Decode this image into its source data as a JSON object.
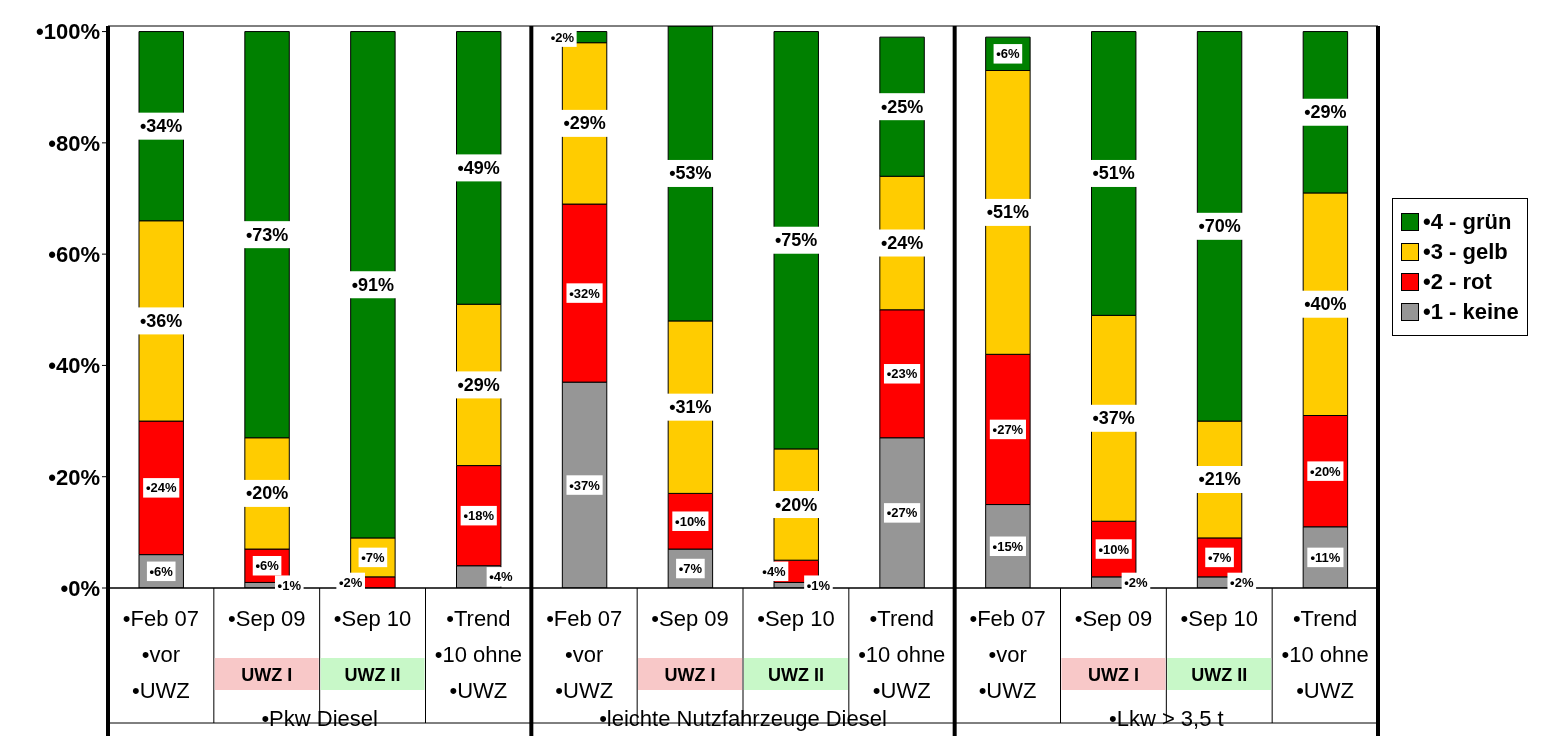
{
  "chart_data": {
    "type": "bar",
    "stacked": true,
    "categories": [
      "•Feb 07\n•vor\n•UWZ",
      "•Sep 09",
      "•Sep 10",
      "•Trend\n•10 ohne\n•UWZ",
      "•Feb 07\n•vor\n•UWZ",
      "•Sep 09",
      "•Sep 10",
      "•Trend\n•10 ohne\n•UWZ",
      "•Feb 07\n•vor\n•UWZ",
      "•Sep 09",
      "•Sep 10",
      "•Trend\n•10 ohne\n•UWZ"
    ],
    "series": [
      {
        "name": "•1 - keine",
        "color": "#969696",
        "values": [
          6,
          1,
          0,
          4,
          37,
          7,
          1,
          27,
          15,
          2,
          2,
          11
        ],
        "value_labels": [
          "•6%",
          "•1%",
          null,
          "•4%",
          "•37%",
          "•7%",
          "•1%",
          "•27%",
          "•15%",
          "•2%",
          "•2%",
          "•11%"
        ]
      },
      {
        "name": "•2 - rot",
        "color": "#ff0000",
        "values": [
          24,
          6,
          2,
          18,
          32,
          10,
          4,
          23,
          27,
          10,
          7,
          20
        ],
        "value_labels": [
          "•24%",
          "•6%",
          "•2%",
          "•18%",
          "•32%",
          "•10%",
          "•4%",
          "•23%",
          "•27%",
          "•10%",
          "•7%",
          "•20%"
        ]
      },
      {
        "name": "•3 - gelb",
        "color": "#ffcc00",
        "values": [
          36,
          20,
          7,
          29,
          29,
          31,
          20,
          24,
          51,
          37,
          21,
          40
        ],
        "value_labels": [
          "•36%",
          "•20%",
          "•7%",
          "•29%",
          "•29%",
          "•31%",
          "•20%",
          "•24%",
          "•51%",
          "•37%",
          "•21%",
          "•40%"
        ]
      },
      {
        "name": "•4 - grün",
        "color": "#008000",
        "values": [
          34,
          73,
          91,
          49,
          2,
          53,
          75,
          25,
          6,
          51,
          70,
          29
        ],
        "value_labels": [
          "•34%",
          "•73%",
          "•91%",
          "•49%",
          "•2%",
          "•53%",
          "•75%",
          "•25%",
          "•6%",
          "•51%",
          "•70%",
          "•29%"
        ]
      }
    ],
    "ylim": [
      0,
      101
    ],
    "yticks": [
      {
        "value": 0,
        "label": "•0%"
      },
      {
        "value": 20,
        "label": "•20%"
      },
      {
        "value": 40,
        "label": "•40%"
      },
      {
        "value": 60,
        "label": "•60%"
      },
      {
        "value": 80,
        "label": "•80%"
      },
      {
        "value": 100,
        "label": "•100%"
      }
    ],
    "legend": "right",
    "annotations": [
      "•Pkw Diesel",
      "•leichte Nutzfahrzeuge Diesel",
      "•Lkw > 3,5 t",
      "UWZ I",
      "UWZ II",
      "UWZ I",
      "UWZ II",
      "UWZ I",
      "UWZ II"
    ]
  }
}
